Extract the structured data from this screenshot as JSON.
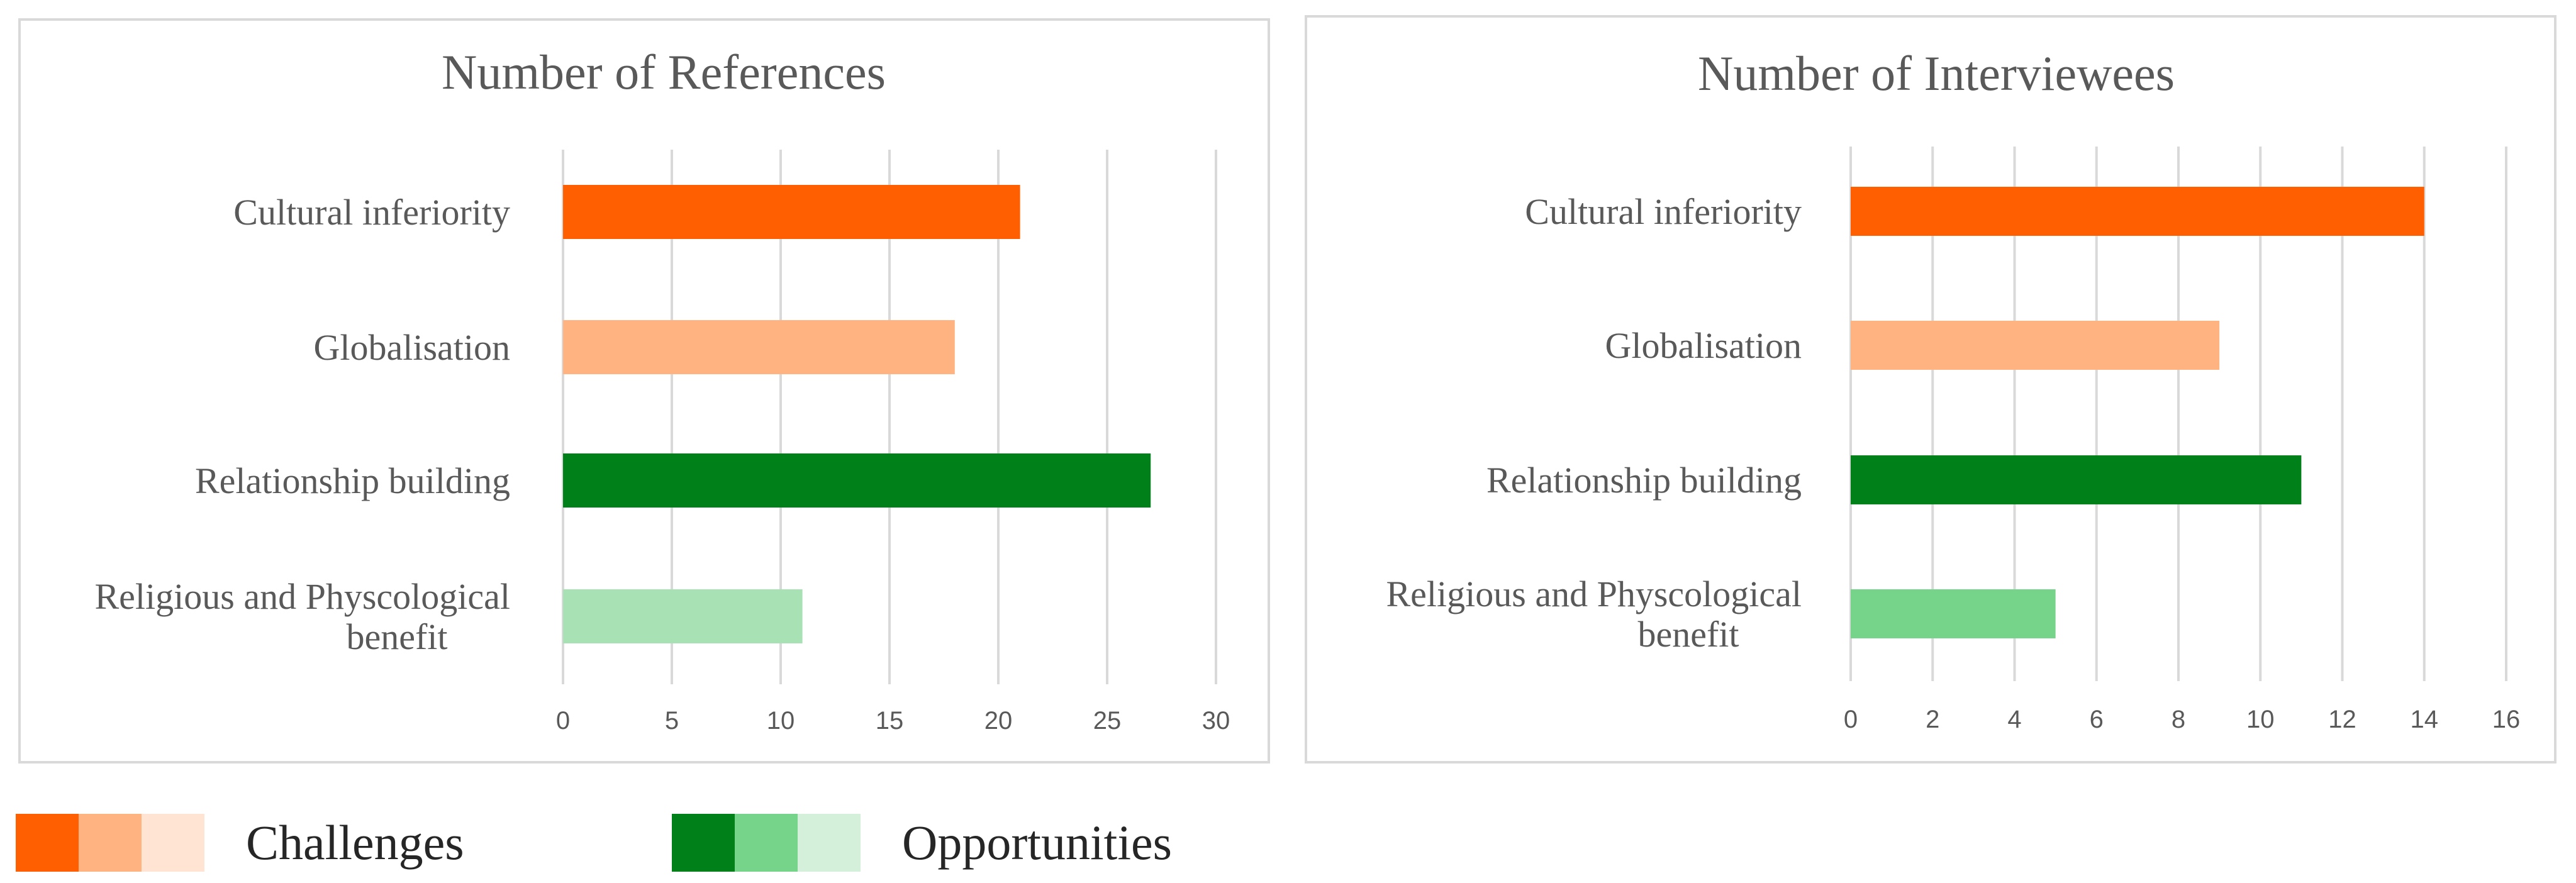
{
  "charts": [
    {
      "type": "bar",
      "orientation": "horizontal",
      "title": "Number of References",
      "categories": [
        "Cultural inferiority",
        "Globalisation",
        "Relationship building",
        "Religious and Physcological benefit"
      ],
      "category_lines": [
        [
          "Cultural inferiority"
        ],
        [
          "Globalisation"
        ],
        [
          "Relationship building"
        ],
        [
          "Religious and Physcological",
          "benefit"
        ]
      ],
      "values": [
        21,
        18,
        27,
        11
      ],
      "colors": [
        "#FF5F00",
        "#FFB380",
        "#008019",
        "#A8E2B4"
      ],
      "xlim": [
        0,
        30
      ],
      "xticks": [
        "0",
        "5",
        "10",
        "15",
        "20",
        "25",
        "30"
      ],
      "grid": true
    },
    {
      "type": "bar",
      "orientation": "horizontal",
      "title": "Number of Interviewees",
      "categories": [
        "Cultural inferiority",
        "Globalisation",
        "Relationship building",
        "Religious and Physcological benefit"
      ],
      "category_lines": [
        [
          "Cultural inferiority"
        ],
        [
          "Globalisation"
        ],
        [
          "Relationship building"
        ],
        [
          "Religious and Physcological",
          "benefit"
        ]
      ],
      "values": [
        14,
        9,
        11,
        5
      ],
      "colors": [
        "#FF5F00",
        "#FFB380",
        "#008019",
        "#76D48A"
      ],
      "xlim": [
        0,
        16
      ],
      "xticks": [
        "0",
        "2",
        "4",
        "6",
        "8",
        "10",
        "12",
        "14",
        "16"
      ],
      "grid": true
    }
  ],
  "legend": {
    "challenges": {
      "label": "Challenges",
      "colors": [
        "#FF5F00",
        "#FFB380",
        "#FFE4D4"
      ]
    },
    "opportunities": {
      "label": "Opportunities",
      "colors": [
        "#008019",
        "#76D48A",
        "#D4F0DA"
      ]
    }
  }
}
